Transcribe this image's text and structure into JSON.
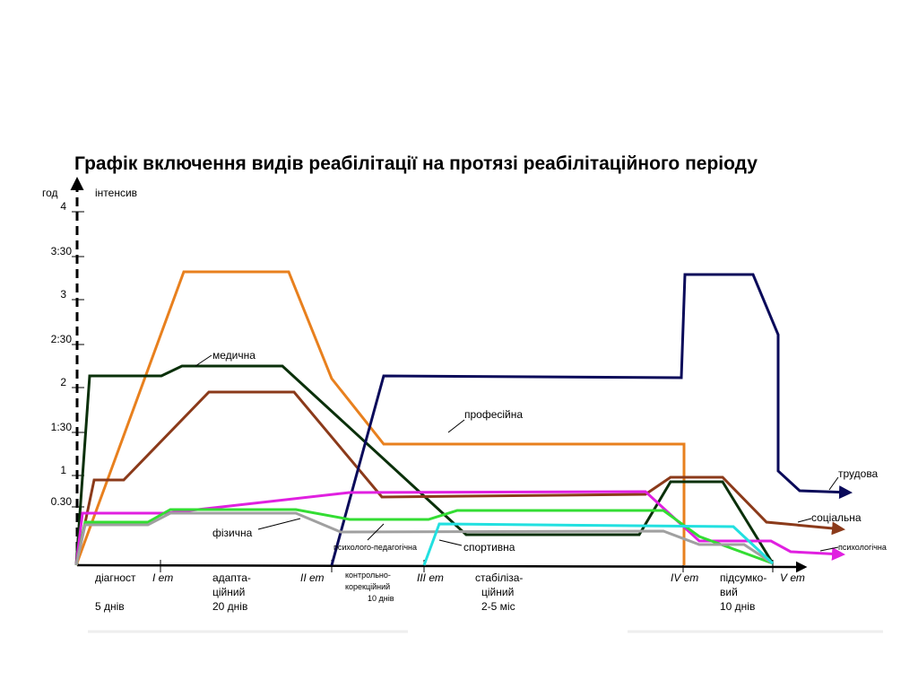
{
  "title": "Графік включення видів реабілітації на протязі реабілітаційного періоду",
  "axis": {
    "y_label": "год",
    "y_label2": "інтенсив"
  },
  "yticks": [
    "4",
    "3:30",
    "3",
    "2:30",
    "2",
    "1:30",
    "1",
    "0.30"
  ],
  "stages": [
    {
      "name": "діагност",
      "duration": "5 днів"
    },
    {
      "name": "I ет"
    },
    {
      "name": "адапта-",
      "name2": "ційний",
      "duration": "20 днів"
    },
    {
      "name": "II ет"
    },
    {
      "name": "контрольно-",
      "name2": "корекційний",
      "duration": "10 днів"
    },
    {
      "name": "III ет"
    },
    {
      "name": "стабіліза-",
      "name2": "ційний",
      "duration": "2-5 міс"
    },
    {
      "name": "IV ет"
    },
    {
      "name": "підсумко-",
      "name2": "вий",
      "duration": "10 днів"
    },
    {
      "name": "V ет"
    }
  ],
  "series_labels": {
    "medical": "медична",
    "professional": "професійна",
    "labour": "трудова",
    "social": "соціальна",
    "psychological": "психологічна",
    "physical": "фізична",
    "psychopedagogical": "психолого-педагогічна",
    "sport": "спортивна"
  }
}
